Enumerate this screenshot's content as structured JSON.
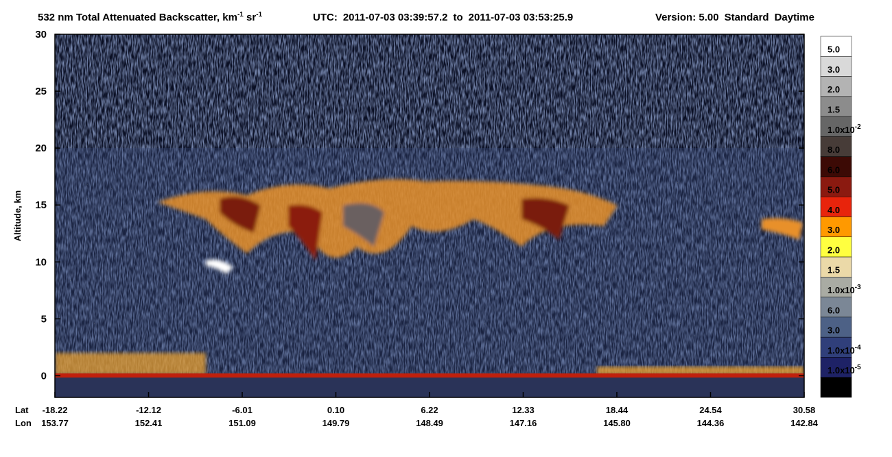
{
  "chart_data": {
    "type": "curtain",
    "title": [
      "532 nm Total Attenuated Backscatter, km",
      "-1",
      " sr",
      "-1"
    ],
    "utc": {
      "label": "UTC:",
      "start": "2011-07-03 03:39:57.2",
      "sep": "to",
      "end": "2011-07-03 03:53:25.9"
    },
    "version": "Version: 5.00",
    "product": "Standard",
    "lighting": "Daytime",
    "ylabel": "Altitude, km",
    "ylim": [
      -1.9,
      30
    ],
    "yticks": [
      0,
      5,
      10,
      15,
      20,
      25,
      30
    ],
    "row_labels": [
      "Lat",
      "Lon"
    ],
    "categories": [
      "-18.22",
      "-12.12",
      "-6.01",
      "0.10",
      "6.22",
      "12.33",
      "18.44",
      "24.54",
      "30.58"
    ],
    "lon": [
      "153.77",
      "152.41",
      "151.09",
      "149.79",
      "148.49",
      "147.16",
      "145.80",
      "144.36",
      "142.84"
    ],
    "colorbar": {
      "colors": [
        "#ffffff",
        "#d9d9d9",
        "#b3b3b3",
        "#8c8c8c",
        "#666666",
        "#473c38",
        "#3c0a05",
        "#8b1a10",
        "#e8240c",
        "#ff9900",
        "#ffff40",
        "#ebd9a8",
        "#a9aba3",
        "#7b8796",
        "#4d6186",
        "#303f7a",
        "#1e2266",
        "#000000"
      ],
      "labels": [
        "5.0",
        "3.0",
        "2.0",
        "1.5",
        {
          "text": "1.0x10",
          "sup": "-2"
        },
        "8.0",
        "6.0",
        "5.0",
        "4.0",
        "3.0",
        "2.0",
        "1.5",
        {
          "text": "1.0x10",
          "sup": "-3"
        },
        "6.0",
        "3.0",
        {
          "text": "1.0x10",
          "sup": "-4"
        },
        {
          "text": "1.0x10",
          "sup": "-5"
        },
        null
      ]
    }
  }
}
